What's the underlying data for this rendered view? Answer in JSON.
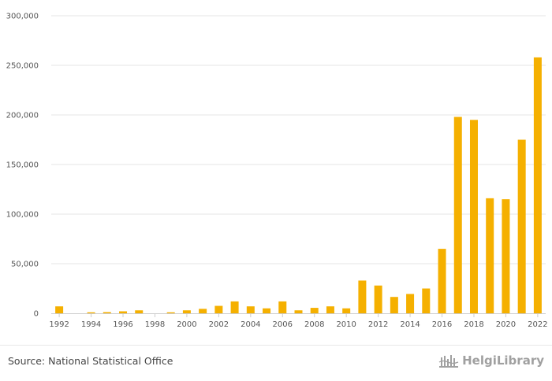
{
  "chart_data": {
    "type": "bar",
    "title": "",
    "xlabel": "",
    "ylabel": "",
    "categories": [
      "1992",
      "1993",
      "1994",
      "1995",
      "1996",
      "1997",
      "1998",
      "1999",
      "2000",
      "2001",
      "2002",
      "2003",
      "2004",
      "2005",
      "2006",
      "2007",
      "2008",
      "2009",
      "2010",
      "2011",
      "2012",
      "2013",
      "2014",
      "2015",
      "2016",
      "2017",
      "2018",
      "2019",
      "2020",
      "2021",
      "2022"
    ],
    "x_tick_labels": [
      "1992",
      "1994",
      "1996",
      "1998",
      "2000",
      "2002",
      "2004",
      "2006",
      "2008",
      "2010",
      "2012",
      "2014",
      "2016",
      "2018",
      "2020",
      "2022"
    ],
    "values": [
      7000,
      0,
      1000,
      1200,
      2000,
      3000,
      0,
      1000,
      3000,
      4500,
      7500,
      12000,
      7000,
      5000,
      12000,
      3000,
      5500,
      7000,
      5000,
      33000,
      28000,
      16500,
      19500,
      25000,
      65000,
      198000,
      195000,
      116000,
      115000,
      175000,
      258000
    ],
    "ylim": [
      0,
      300000
    ],
    "y_ticks": [
      "0",
      "50,000",
      "100,000",
      "150,000",
      "200,000",
      "250,000",
      "300,000"
    ],
    "grid": true,
    "legend": "none",
    "bar_color": "#f5b000",
    "grid_color": "#e6e6e6"
  },
  "footer": {
    "source": "Source: National Statistical Office",
    "brand": "HelgiLibrary"
  }
}
